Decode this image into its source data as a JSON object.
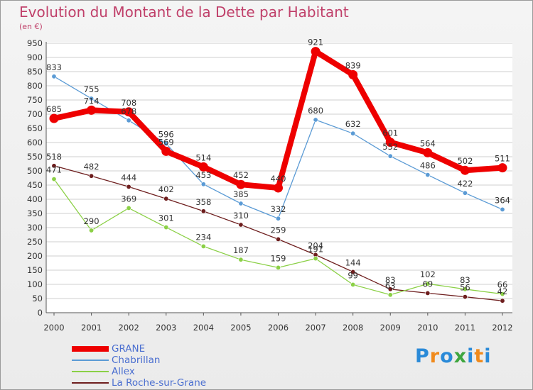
{
  "title": "Evolution du Montant de la Dette par Habitant",
  "subtitle": "(en €)",
  "logo": {
    "text": "Proxiti",
    "colors": [
      "#2a8ad8",
      "#f08a1c",
      "#3fa63f"
    ]
  },
  "chart_data": {
    "type": "line",
    "x": [
      "2000",
      "2001",
      "2002",
      "2003",
      "2004",
      "2005",
      "2006",
      "2007",
      "2008",
      "2009",
      "2010",
      "2011",
      "2012"
    ],
    "ylim": [
      0,
      950
    ],
    "yticks": [
      0,
      50,
      100,
      150,
      200,
      250,
      300,
      350,
      400,
      450,
      500,
      550,
      600,
      650,
      700,
      750,
      800,
      850,
      900,
      950
    ],
    "grid": true,
    "legend": "bottom-left",
    "series": [
      {
        "name": "GRANE",
        "color": "#ee0000",
        "values": [
          685,
          714,
          708,
          569,
          514,
          452,
          440,
          921,
          839,
          601,
          564,
          502,
          511
        ],
        "labels": [
          "685",
          "714",
          "708",
          "569",
          "514",
          "452",
          "440",
          "921",
          "839",
          "601",
          "564",
          "502",
          "511"
        ]
      },
      {
        "name": "Chabrillan",
        "color": "#5b9bd5",
        "values": [
          833,
          755,
          678,
          596,
          453,
          385,
          332,
          680,
          632,
          552,
          486,
          422,
          364
        ],
        "labels": [
          "833",
          "755",
          "678",
          "596",
          "453",
          "385",
          "332",
          "680",
          "632",
          "552",
          "486",
          "422",
          "364"
        ]
      },
      {
        "name": "Allex",
        "color": "#8bd046",
        "values": [
          471,
          290,
          369,
          301,
          234,
          187,
          159,
          191,
          99,
          63,
          102,
          83,
          66
        ],
        "labels": [
          "471",
          "290",
          "369",
          "301",
          "234",
          "187",
          "159",
          "191",
          "99",
          "63",
          "102",
          "83",
          "66"
        ]
      },
      {
        "name": "La Roche-sur-Grane",
        "color": "#6e1e1e",
        "values": [
          518,
          482,
          444,
          402,
          358,
          310,
          259,
          204,
          144,
          83,
          69,
          56,
          42
        ],
        "labels": [
          "518",
          "482",
          "444",
          "402",
          "358",
          "310",
          "259",
          "204",
          "144",
          "83",
          "69",
          "56",
          "42"
        ]
      }
    ]
  }
}
